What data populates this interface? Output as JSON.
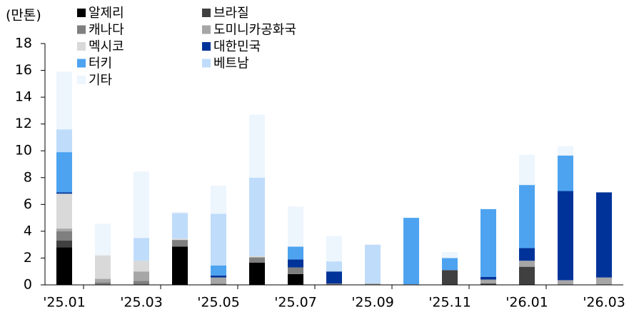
{
  "chart_data": {
    "type": "stacked_bar",
    "y_label": "(만톤)",
    "categories": [
      "'25.01",
      null,
      "'25.03",
      null,
      "'25.05",
      null,
      "'25.07",
      null,
      "'25.09",
      null,
      "'25.11",
      null,
      "'26.01",
      null,
      "'26.03"
    ],
    "series": [
      {
        "name": "알제리",
        "color": "#000000",
        "values": [
          2.8,
          0,
          0,
          2.85,
          0,
          1.65,
          0.8,
          0,
          0,
          0,
          0,
          0,
          0,
          0,
          0
        ]
      },
      {
        "name": "브라질",
        "color": "#404040",
        "values": [
          0.5,
          0,
          0,
          0,
          0,
          0,
          0,
          0,
          0,
          0,
          1.1,
          0.1,
          1.35,
          0,
          0
        ]
      },
      {
        "name": "캐나다",
        "color": "#7f7f7f",
        "values": [
          0.7,
          0.2,
          0.3,
          0.5,
          0.1,
          0.4,
          0.5,
          0.1,
          0,
          0,
          0,
          0,
          0,
          0,
          0
        ]
      },
      {
        "name": "도미니카공화국",
        "color": "#a6a6a6",
        "values": [
          0.2,
          0.25,
          0.7,
          0,
          0.45,
          0,
          0,
          0,
          0.1,
          0.05,
          0,
          0.3,
          0.45,
          0.35,
          0.55
        ]
      },
      {
        "name": "멕시코",
        "color": "#d9d9d9",
        "values": [
          2.6,
          1.75,
          0.8,
          0.1,
          0,
          0.1,
          0,
          0,
          0,
          0,
          0,
          0,
          0,
          0,
          0
        ]
      },
      {
        "name": "대한민국",
        "color": "#003399",
        "values": [
          0.1,
          0,
          0,
          0,
          0.15,
          0,
          0.6,
          0.9,
          0,
          0,
          0,
          0.2,
          0.95,
          6.65,
          6.35
        ]
      },
      {
        "name": "터키",
        "color": "#4da3f0",
        "values": [
          3.0,
          0,
          0,
          0,
          0.75,
          0,
          0.95,
          0,
          0,
          4.95,
          0.9,
          5.05,
          4.7,
          2.65,
          0
        ]
      },
      {
        "name": "베트남",
        "color": "#bfdcfa",
        "values": [
          1.7,
          0,
          1.7,
          1.9,
          3.85,
          5.85,
          0,
          0.75,
          2.9,
          0,
          0,
          0,
          0,
          0,
          0
        ]
      },
      {
        "name": "기타",
        "color": "#edf5fd",
        "values": [
          4.3,
          2.35,
          4.95,
          0.1,
          2.1,
          4.7,
          3.0,
          1.9,
          0,
          0,
          0.45,
          0.05,
          2.25,
          0.7,
          0
        ]
      }
    ],
    "ylim": [
      0,
      18
    ],
    "yticks": [
      0,
      2,
      4,
      6,
      8,
      10,
      12,
      14,
      16,
      18
    ]
  }
}
